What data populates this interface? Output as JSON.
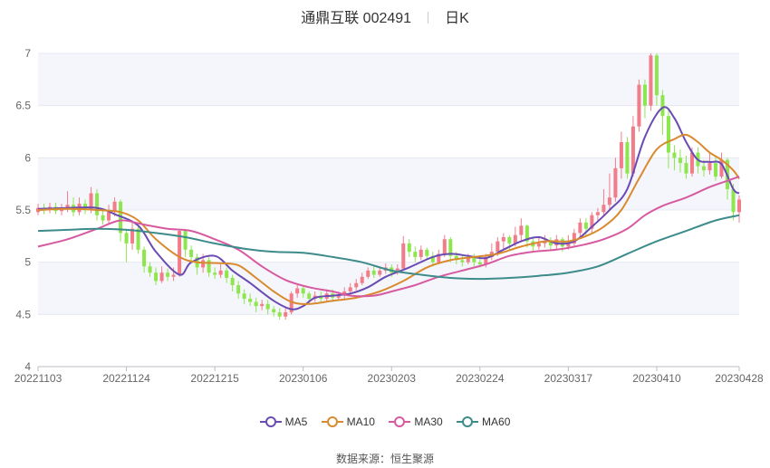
{
  "title": {
    "name": "通鼎互联 002491",
    "period": "日K"
  },
  "source_label": "数据来源：",
  "source": "恒生聚源",
  "colors": {
    "up": "#f27d8a",
    "down": "#8ee64f",
    "grid": "#e6e9f0",
    "band": "#f4f6fb",
    "axis": "#b8bcc6",
    "label": "#666666"
  },
  "chart_data": {
    "type": "candlestick",
    "y_ticks": [
      "4",
      "4.5",
      "5",
      "5.5",
      "6",
      "6.5",
      "7"
    ],
    "ylim": [
      4,
      7
    ],
    "x_labels": [
      "20221103",
      "20221124",
      "20221215",
      "20230106",
      "20230203",
      "20230224",
      "20230317",
      "20230410",
      "20230428"
    ],
    "x_label_indices": [
      0,
      15,
      30,
      45,
      60,
      75,
      90,
      105,
      119
    ],
    "n_days": 120,
    "candles": [
      [
        5.48,
        5.52,
        5.56,
        5.45
      ],
      [
        5.52,
        5.5,
        5.56,
        5.46
      ],
      [
        5.5,
        5.53,
        5.57,
        5.47
      ],
      [
        5.53,
        5.49,
        5.57,
        5.46
      ],
      [
        5.49,
        5.52,
        5.56,
        5.45
      ],
      [
        5.52,
        5.55,
        5.68,
        5.48
      ],
      [
        5.55,
        5.48,
        5.62,
        5.44
      ],
      [
        5.48,
        5.56,
        5.62,
        5.45
      ],
      [
        5.56,
        5.5,
        5.6,
        5.46
      ],
      [
        5.5,
        5.66,
        5.72,
        5.47
      ],
      [
        5.66,
        5.45,
        5.7,
        5.4
      ],
      [
        5.45,
        5.4,
        5.5,
        5.36
      ],
      [
        5.4,
        5.48,
        5.55,
        5.36
      ],
      [
        5.48,
        5.58,
        5.62,
        5.44
      ],
      [
        5.58,
        5.28,
        5.6,
        5.2
      ],
      [
        5.28,
        5.18,
        5.32,
        5.0
      ],
      [
        5.18,
        5.32,
        5.38,
        5.12
      ],
      [
        5.32,
        5.12,
        5.35,
        5.08
      ],
      [
        5.12,
        4.96,
        5.15,
        4.9
      ],
      [
        4.96,
        4.9,
        5.0,
        4.86
      ],
      [
        4.9,
        4.82,
        4.95,
        4.78
      ],
      [
        4.82,
        4.9,
        4.96,
        4.8
      ],
      [
        4.9,
        4.86,
        4.94,
        4.82
      ],
      [
        4.86,
        4.88,
        4.95,
        4.82
      ],
      [
        4.88,
        5.3,
        5.32,
        4.86
      ],
      [
        5.3,
        5.12,
        5.32,
        5.05
      ],
      [
        5.12,
        5.05,
        5.16,
        5.0
      ],
      [
        5.05,
        4.95,
        5.08,
        4.88
      ],
      [
        4.95,
        5.02,
        5.08,
        4.9
      ],
      [
        5.02,
        4.9,
        5.05,
        4.86
      ],
      [
        4.9,
        4.88,
        4.95,
        4.84
      ],
      [
        4.88,
        4.92,
        4.98,
        4.85
      ],
      [
        4.92,
        4.85,
        4.95,
        4.8
      ],
      [
        4.85,
        4.78,
        4.88,
        4.72
      ],
      [
        4.78,
        4.7,
        4.82,
        4.65
      ],
      [
        4.7,
        4.65,
        4.74,
        4.6
      ],
      [
        4.65,
        4.62,
        4.7,
        4.58
      ],
      [
        4.62,
        4.58,
        4.66,
        4.52
      ],
      [
        4.58,
        4.6,
        4.64,
        4.54
      ],
      [
        4.6,
        4.55,
        4.64,
        4.5
      ],
      [
        4.55,
        4.52,
        4.58,
        4.48
      ],
      [
        4.52,
        4.48,
        4.56,
        4.45
      ],
      [
        4.48,
        4.52,
        4.56,
        4.45
      ],
      [
        4.52,
        4.7,
        4.72,
        4.5
      ],
      [
        4.7,
        4.75,
        4.78,
        4.66
      ],
      [
        4.75,
        4.7,
        4.78,
        4.66
      ],
      [
        4.7,
        4.65,
        4.72,
        4.6
      ],
      [
        4.65,
        4.68,
        4.72,
        4.62
      ],
      [
        4.68,
        4.65,
        4.72,
        4.62
      ],
      [
        4.65,
        4.7,
        4.74,
        4.62
      ],
      [
        4.7,
        4.66,
        4.74,
        4.62
      ],
      [
        4.66,
        4.68,
        4.72,
        4.63
      ],
      [
        4.68,
        4.72,
        4.76,
        4.65
      ],
      [
        4.72,
        4.76,
        4.8,
        4.69
      ],
      [
        4.76,
        4.8,
        4.84,
        4.73
      ],
      [
        4.8,
        4.86,
        4.9,
        4.78
      ],
      [
        4.86,
        4.92,
        4.95,
        4.84
      ],
      [
        4.92,
        4.88,
        4.96,
        4.85
      ],
      [
        4.88,
        4.92,
        4.96,
        4.86
      ],
      [
        4.92,
        4.95,
        4.99,
        4.89
      ],
      [
        4.95,
        4.9,
        4.98,
        4.86
      ],
      [
        4.9,
        4.94,
        4.98,
        4.88
      ],
      [
        4.94,
        5.18,
        5.25,
        4.92
      ],
      [
        5.18,
        5.1,
        5.22,
        5.05
      ],
      [
        5.1,
        5.05,
        5.15,
        5.0
      ],
      [
        5.05,
        5.12,
        5.16,
        5.02
      ],
      [
        5.12,
        5.06,
        5.14,
        5.02
      ],
      [
        5.06,
        5.0,
        5.1,
        4.96
      ],
      [
        5.0,
        5.08,
        5.12,
        4.98
      ],
      [
        5.08,
        5.22,
        5.26,
        5.05
      ],
      [
        5.22,
        5.06,
        5.24,
        5.0
      ],
      [
        5.06,
        5.02,
        5.1,
        4.98
      ],
      [
        5.02,
        5.0,
        5.06,
        4.96
      ],
      [
        5.0,
        5.04,
        5.08,
        4.98
      ],
      [
        5.04,
        5.0,
        5.08,
        4.96
      ],
      [
        5.0,
        4.98,
        5.04,
        4.95
      ],
      [
        4.98,
        5.05,
        5.08,
        4.95
      ],
      [
        5.05,
        5.1,
        5.18,
        5.02
      ],
      [
        5.1,
        5.2,
        5.24,
        5.06
      ],
      [
        5.2,
        5.24,
        5.28,
        5.12
      ],
      [
        5.24,
        5.18,
        5.26,
        5.12
      ],
      [
        5.18,
        5.26,
        5.34,
        5.15
      ],
      [
        5.26,
        5.35,
        5.42,
        5.2
      ],
      [
        5.35,
        5.2,
        5.36,
        5.14
      ],
      [
        5.2,
        5.15,
        5.24,
        5.1
      ],
      [
        5.15,
        5.18,
        5.24,
        5.12
      ],
      [
        5.18,
        5.2,
        5.26,
        5.14
      ],
      [
        5.2,
        5.16,
        5.24,
        5.12
      ],
      [
        5.16,
        5.22,
        5.26,
        5.12
      ],
      [
        5.22,
        5.15,
        5.24,
        5.1
      ],
      [
        5.15,
        5.18,
        5.26,
        5.12
      ],
      [
        5.18,
        5.28,
        5.32,
        5.15
      ],
      [
        5.28,
        5.38,
        5.42,
        5.24
      ],
      [
        5.38,
        5.32,
        5.42,
        5.26
      ],
      [
        5.32,
        5.45,
        5.48,
        5.28
      ],
      [
        5.45,
        5.48,
        5.52,
        5.4
      ],
      [
        5.48,
        5.55,
        5.7,
        5.45
      ],
      [
        5.55,
        5.62,
        5.85,
        5.5
      ],
      [
        5.62,
        5.9,
        6.0,
        5.58
      ],
      [
        5.9,
        6.15,
        6.25,
        5.8
      ],
      [
        6.15,
        5.85,
        6.2,
        5.8
      ],
      [
        5.85,
        6.3,
        6.4,
        5.82
      ],
      [
        6.3,
        6.7,
        6.75,
        6.25
      ],
      [
        6.7,
        6.5,
        6.75,
        6.38
      ],
      [
        6.5,
        6.98,
        7.0,
        6.45
      ],
      [
        6.98,
        6.6,
        7.0,
        6.5
      ],
      [
        6.6,
        6.4,
        6.65,
        6.22
      ],
      [
        6.4,
        6.05,
        6.45,
        5.9
      ],
      [
        6.05,
        6.0,
        6.12,
        5.88
      ],
      [
        6.0,
        5.95,
        6.08,
        5.86
      ],
      [
        5.95,
        5.85,
        6.02,
        5.8
      ],
      [
        5.85,
        6.05,
        6.1,
        5.82
      ],
      [
        6.05,
        5.92,
        6.1,
        5.85
      ],
      [
        5.92,
        5.88,
        5.98,
        5.82
      ],
      [
        5.88,
        5.95,
        6.05,
        5.84
      ],
      [
        5.95,
        5.82,
        6.02,
        5.78
      ],
      [
        5.82,
        5.98,
        6.05,
        5.8
      ],
      [
        5.98,
        5.7,
        6.0,
        5.6
      ],
      [
        5.7,
        5.48,
        5.75,
        5.4
      ],
      [
        5.48,
        5.6,
        5.64,
        5.38
      ]
    ],
    "series": [
      {
        "name": "MA5",
        "color": "#6a4bb3",
        "values": [
          [
            0,
            5.51
          ],
          [
            5,
            5.52
          ],
          [
            10,
            5.52
          ],
          [
            13,
            5.46
          ],
          [
            17,
            5.35
          ],
          [
            20,
            5.1
          ],
          [
            24,
            4.88
          ],
          [
            26,
            5.0
          ],
          [
            30,
            5.06
          ],
          [
            33,
            4.92
          ],
          [
            36,
            4.8
          ],
          [
            40,
            4.63
          ],
          [
            43,
            4.55
          ],
          [
            45,
            4.58
          ],
          [
            47,
            4.66
          ],
          [
            50,
            4.68
          ],
          [
            53,
            4.7
          ],
          [
            56,
            4.76
          ],
          [
            59,
            4.86
          ],
          [
            63,
            4.95
          ],
          [
            67,
            5.05
          ],
          [
            70,
            5.08
          ],
          [
            73,
            5.06
          ],
          [
            76,
            5.04
          ],
          [
            79,
            5.12
          ],
          [
            82,
            5.2
          ],
          [
            85,
            5.24
          ],
          [
            88,
            5.18
          ],
          [
            91,
            5.2
          ],
          [
            94,
            5.34
          ],
          [
            97,
            5.5
          ],
          [
            100,
            5.7
          ],
          [
            103,
            6.2
          ],
          [
            106,
            6.48
          ],
          [
            108,
            6.38
          ],
          [
            110,
            6.15
          ],
          [
            112,
            5.98
          ],
          [
            114,
            5.96
          ],
          [
            116,
            5.94
          ],
          [
            118,
            5.7
          ],
          [
            119,
            5.66
          ]
        ]
      },
      {
        "name": "MA10",
        "color": "#d98a2e",
        "values": [
          [
            0,
            5.5
          ],
          [
            5,
            5.51
          ],
          [
            10,
            5.5
          ],
          [
            14,
            5.48
          ],
          [
            17,
            5.4
          ],
          [
            20,
            5.22
          ],
          [
            24,
            5.05
          ],
          [
            27,
            5.0
          ],
          [
            31,
            4.99
          ],
          [
            34,
            4.97
          ],
          [
            37,
            4.85
          ],
          [
            40,
            4.72
          ],
          [
            43,
            4.62
          ],
          [
            46,
            4.6
          ],
          [
            50,
            4.63
          ],
          [
            54,
            4.66
          ],
          [
            58,
            4.72
          ],
          [
            62,
            4.82
          ],
          [
            66,
            4.95
          ],
          [
            70,
            5.02
          ],
          [
            74,
            5.05
          ],
          [
            78,
            5.08
          ],
          [
            82,
            5.15
          ],
          [
            86,
            5.2
          ],
          [
            90,
            5.2
          ],
          [
            93,
            5.25
          ],
          [
            96,
            5.34
          ],
          [
            99,
            5.5
          ],
          [
            102,
            5.8
          ],
          [
            105,
            6.08
          ],
          [
            108,
            6.18
          ],
          [
            110,
            6.22
          ],
          [
            112,
            6.15
          ],
          [
            114,
            6.05
          ],
          [
            116,
            5.98
          ],
          [
            118,
            5.88
          ],
          [
            119,
            5.8
          ]
        ]
      },
      {
        "name": "MA30",
        "color": "#d75aa0",
        "values": [
          [
            0,
            5.15
          ],
          [
            5,
            5.22
          ],
          [
            10,
            5.32
          ],
          [
            14,
            5.4
          ],
          [
            18,
            5.36
          ],
          [
            22,
            5.32
          ],
          [
            26,
            5.3
          ],
          [
            30,
            5.22
          ],
          [
            34,
            5.12
          ],
          [
            38,
            4.96
          ],
          [
            42,
            4.83
          ],
          [
            46,
            4.76
          ],
          [
            50,
            4.72
          ],
          [
            53,
            4.68
          ],
          [
            57,
            4.68
          ],
          [
            60,
            4.72
          ],
          [
            64,
            4.78
          ],
          [
            68,
            4.86
          ],
          [
            72,
            4.92
          ],
          [
            76,
            4.98
          ],
          [
            80,
            5.06
          ],
          [
            84,
            5.1
          ],
          [
            88,
            5.12
          ],
          [
            92,
            5.16
          ],
          [
            96,
            5.22
          ],
          [
            100,
            5.32
          ],
          [
            103,
            5.45
          ],
          [
            106,
            5.54
          ],
          [
            110,
            5.62
          ],
          [
            114,
            5.72
          ],
          [
            117,
            5.78
          ],
          [
            119,
            5.82
          ]
        ]
      },
      {
        "name": "MA60",
        "color": "#3d8b8b",
        "values": [
          [
            0,
            5.3
          ],
          [
            5,
            5.31
          ],
          [
            10,
            5.32
          ],
          [
            15,
            5.31
          ],
          [
            20,
            5.28
          ],
          [
            25,
            5.24
          ],
          [
            30,
            5.18
          ],
          [
            35,
            5.13
          ],
          [
            40,
            5.1
          ],
          [
            45,
            5.09
          ],
          [
            50,
            5.05
          ],
          [
            55,
            5.0
          ],
          [
            60,
            4.92
          ],
          [
            65,
            4.88
          ],
          [
            70,
            4.85
          ],
          [
            75,
            4.84
          ],
          [
            80,
            4.85
          ],
          [
            85,
            4.87
          ],
          [
            90,
            4.9
          ],
          [
            95,
            4.96
          ],
          [
            100,
            5.08
          ],
          [
            105,
            5.2
          ],
          [
            110,
            5.3
          ],
          [
            115,
            5.4
          ],
          [
            119,
            5.45
          ]
        ]
      }
    ],
    "legend": [
      "MA5",
      "MA10",
      "MA30",
      "MA60"
    ],
    "legend_position": "bottom",
    "grid": true
  }
}
